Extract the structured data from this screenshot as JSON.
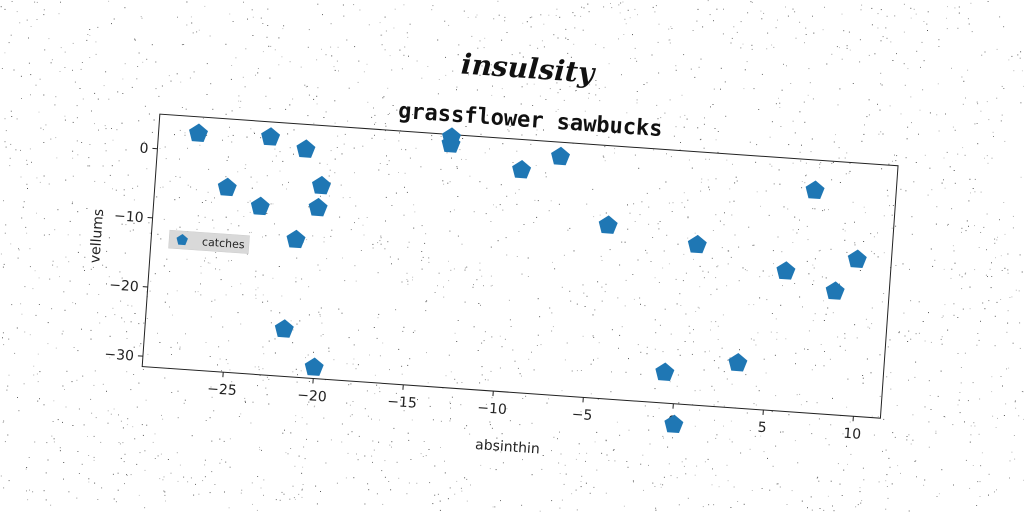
{
  "figure": {
    "suptitle": "insulsity"
  },
  "chart_data": {
    "type": "scatter",
    "title": "grassflower sawbucks",
    "xlabel": "absinthin",
    "ylabel": "vellums",
    "xlim": [
      -29.5,
      11.5
    ],
    "ylim": [
      -31.5,
      5.0
    ],
    "xticks": [
      -25,
      -20,
      -15,
      -10,
      -5,
      0,
      5,
      10
    ],
    "xtick_labels": [
      "−25",
      "−20",
      "−15",
      "−10",
      "−5",
      "0",
      "5",
      "10"
    ],
    "yticks": [
      0,
      -10,
      -20,
      -30
    ],
    "ytick_labels": [
      "0",
      "−10",
      "−20",
      "−30"
    ],
    "grid": false,
    "legend_position": "center-left",
    "marker": "pentagon",
    "color": "#1f77b4",
    "series": [
      {
        "name": "catches",
        "points": [
          {
            "x": -27.3,
            "y": 2.6
          },
          {
            "x": -25.5,
            "y": -4.9
          },
          {
            "x": -23.6,
            "y": -7.3
          },
          {
            "x": -23.3,
            "y": 2.8
          },
          {
            "x": -21.8,
            "y": -24.7
          },
          {
            "x": -21.5,
            "y": -11.7
          },
          {
            "x": -21.3,
            "y": 1.4
          },
          {
            "x": -20.4,
            "y": -6.9
          },
          {
            "x": -20.3,
            "y": -3.7
          },
          {
            "x": -20.0,
            "y": -29.9
          },
          {
            "x": -13.3,
            "y": 4.6
          },
          {
            "x": -13.3,
            "y": 3.6
          },
          {
            "x": -9.3,
            "y": 0.6
          },
          {
            "x": -7.2,
            "y": 2.9
          },
          {
            "x": -4.3,
            "y": -6.5
          },
          {
            "x": -0.6,
            "y": -27.1
          },
          {
            "x": 0.1,
            "y": -34.5
          },
          {
            "x": 0.7,
            "y": -8.4
          },
          {
            "x": 3.4,
            "y": -25.0
          },
          {
            "x": 5.7,
            "y": -11.3
          },
          {
            "x": 7.0,
            "y": 0.6
          },
          {
            "x": 8.5,
            "y": -13.7
          },
          {
            "x": 9.6,
            "y": -8.9
          }
        ]
      }
    ]
  }
}
